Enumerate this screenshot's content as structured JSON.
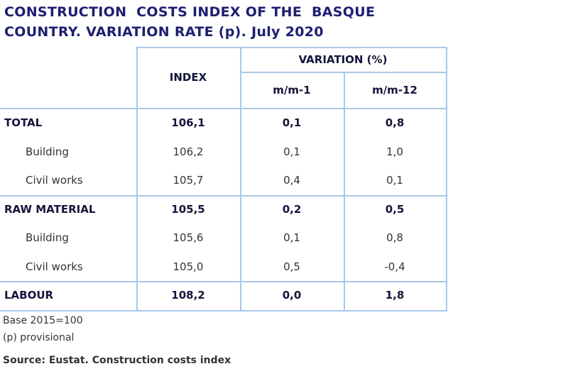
{
  "title": [
    "CONSTRUCTION  COSTS INDEX OF THE  BASQUE",
    "COUNTRY. VARIATION RATE (p). July 2020"
  ],
  "table": {
    "header": {
      "index": "INDEX",
      "variation": "VARIATION (%)",
      "mm1": "m/m-1",
      "mm12": "m/m-12"
    },
    "rows": [
      {
        "label": "TOTAL",
        "index": "106,1",
        "mm1": "0,1",
        "mm12": "0,8",
        "bold": true
      },
      {
        "label": "Building",
        "index": "106,2",
        "mm1": "0,1",
        "mm12": "1,0",
        "bold": false
      },
      {
        "label": "Civil works",
        "index": "105,7",
        "mm1": "0,4",
        "mm12": "0,1",
        "bold": false
      },
      {
        "label": "RAW MATERIAL",
        "index": "105,5",
        "mm1": "0,2",
        "mm12": "0,5",
        "bold": true
      },
      {
        "label": "Building",
        "index": "105,6",
        "mm1": "0,1",
        "mm12": "0,8",
        "bold": false
      },
      {
        "label": "Civil works",
        "index": "105,0",
        "mm1": "0,5",
        "mm12": "-0,4",
        "bold": false
      },
      {
        "label": "LABOUR",
        "index": "108,2",
        "mm1": "0,0",
        "mm12": "1,8",
        "bold": true
      }
    ]
  },
  "notes": [
    "Base 2015=100",
    "(p) provisional"
  ],
  "source": "Source: Eustat. Construction costs index"
}
